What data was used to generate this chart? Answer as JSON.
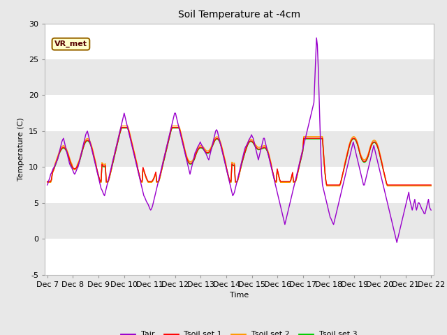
{
  "title": "Soil Temperature at -4cm",
  "xlabel": "Time",
  "ylabel": "Temperature (C)",
  "ylim": [
    -5,
    30
  ],
  "annotation": "VR_met",
  "line_colors": {
    "Tair": "#9900cc",
    "Tsoil_set1": "#ff0000",
    "Tsoil_set2": "#ff9900",
    "Tsoil_set3": "#00cc00"
  },
  "legend_labels": [
    "Tair",
    "Tsoil set 1",
    "Tsoil set 2",
    "Tsoil set 3"
  ],
  "xtick_labels": [
    "Dec 7",
    "Dec 8",
    "Dec 9",
    "Dec 10",
    "Dec 11",
    "Dec 12",
    "Dec 13",
    "Dec 14",
    "Dec 15",
    "Dec 16",
    "Dec 17",
    "Dec 18",
    "Dec 19",
    "Dec 20",
    "Dec 21",
    "Dec 22"
  ],
  "ytick_values": [
    -5,
    0,
    5,
    10,
    15,
    20,
    25,
    30
  ],
  "background_color": "#e8e8e8",
  "grid_color": "#ffffff",
  "line_width": 1.0,
  "tair": [
    7.5,
    7.8,
    8.2,
    8.5,
    9.0,
    9.2,
    9.5,
    9.8,
    10.0,
    10.2,
    10.5,
    10.8,
    11.0,
    11.5,
    12.0,
    12.5,
    13.0,
    13.5,
    13.8,
    14.0,
    13.5,
    13.0,
    12.5,
    12.0,
    11.5,
    11.0,
    10.5,
    10.2,
    10.0,
    9.8,
    9.5,
    9.2,
    9.0,
    9.2,
    9.5,
    9.8,
    10.0,
    10.5,
    11.0,
    11.5,
    12.0,
    12.5,
    13.0,
    13.5,
    14.0,
    14.5,
    14.8,
    15.0,
    14.5,
    14.0,
    13.5,
    13.0,
    12.5,
    12.0,
    11.5,
    11.0,
    10.5,
    10.0,
    9.5,
    9.0,
    8.5,
    8.0,
    7.5,
    7.0,
    6.8,
    6.5,
    6.2,
    6.0,
    6.5,
    7.0,
    7.5,
    8.0,
    8.5,
    9.0,
    9.5,
    10.0,
    10.5,
    11.0,
    11.5,
    12.0,
    12.5,
    13.0,
    13.5,
    14.0,
    14.5,
    15.0,
    15.5,
    16.0,
    16.5,
    17.0,
    17.5,
    17.0,
    16.5,
    16.0,
    15.5,
    15.0,
    14.5,
    14.0,
    13.5,
    13.0,
    12.5,
    12.0,
    11.5,
    11.0,
    10.5,
    10.0,
    9.5,
    9.0,
    8.5,
    8.0,
    7.5,
    7.0,
    6.5,
    6.0,
    5.8,
    5.5,
    5.2,
    5.0,
    4.8,
    4.5,
    4.2,
    4.0,
    4.2,
    4.5,
    5.0,
    5.5,
    6.0,
    6.5,
    7.0,
    7.5,
    8.0,
    8.5,
    9.0,
    9.5,
    10.0,
    10.5,
    11.0,
    11.5,
    12.0,
    12.5,
    13.0,
    13.5,
    14.0,
    14.5,
    15.0,
    15.5,
    16.0,
    16.5,
    17.0,
    17.5,
    17.5,
    17.0,
    16.5,
    16.0,
    15.5,
    15.0,
    14.5,
    14.0,
    13.5,
    13.0,
    12.5,
    12.0,
    11.5,
    11.0,
    10.5,
    10.0,
    9.5,
    9.0,
    9.5,
    10.0,
    10.5,
    11.0,
    11.5,
    12.0,
    12.2,
    12.5,
    12.8,
    13.0,
    13.2,
    13.5,
    13.2,
    13.0,
    12.8,
    12.5,
    12.2,
    12.0,
    11.8,
    11.5,
    11.2,
    11.0,
    11.5,
    12.0,
    12.5,
    13.0,
    13.5,
    14.0,
    14.5,
    15.0,
    15.2,
    15.0,
    14.5,
    14.0,
    13.5,
    13.0,
    12.5,
    12.0,
    11.5,
    11.0,
    10.5,
    10.0,
    9.5,
    9.0,
    8.5,
    8.0,
    7.5,
    7.0,
    6.5,
    6.0,
    6.2,
    6.5,
    7.0,
    7.5,
    8.0,
    8.5,
    9.0,
    9.5,
    10.0,
    10.5,
    11.0,
    11.5,
    12.0,
    12.5,
    12.8,
    13.0,
    13.2,
    13.5,
    13.8,
    14.0,
    14.2,
    14.5,
    14.2,
    14.0,
    13.5,
    13.0,
    12.5,
    12.0,
    11.5,
    11.0,
    11.5,
    12.0,
    12.5,
    13.0,
    13.5,
    14.0,
    14.0,
    13.5,
    13.0,
    12.5,
    12.0,
    11.5,
    11.0,
    10.5,
    10.0,
    9.5,
    9.0,
    8.5,
    8.0,
    7.5,
    7.0,
    6.5,
    6.0,
    5.5,
    5.0,
    4.5,
    4.0,
    3.5,
    3.0,
    2.5,
    2.0,
    2.5,
    3.0,
    3.5,
    4.0,
    4.5,
    5.0,
    5.5,
    6.0,
    6.5,
    7.0,
    7.5,
    8.0,
    8.5,
    9.0,
    9.5,
    10.0,
    10.5,
    11.0,
    11.5,
    12.0,
    12.5,
    13.0,
    13.5,
    14.0,
    14.5,
    15.0,
    15.5,
    16.0,
    16.5,
    17.0,
    17.5,
    18.0,
    18.5,
    19.0,
    22.0,
    25.0,
    28.0,
    27.0,
    24.0,
    20.0,
    16.0,
    12.0,
    9.0,
    7.5,
    7.0,
    6.5,
    6.0,
    5.5,
    5.0,
    4.5,
    4.0,
    3.5,
    3.0,
    2.8,
    2.5,
    2.2,
    2.0,
    2.5,
    3.0,
    3.5,
    4.0,
    4.5,
    5.0,
    5.5,
    6.0,
    6.5,
    7.0,
    7.5,
    8.0,
    8.5,
    9.0,
    9.5,
    10.0,
    10.5,
    11.0,
    11.5,
    12.0,
    12.5,
    13.0,
    13.5,
    13.0,
    12.5,
    12.0,
    11.5,
    11.0,
    10.5,
    10.0,
    9.5,
    9.0,
    8.5,
    8.0,
    7.5,
    7.5,
    8.0,
    8.5,
    9.0,
    9.5,
    10.0,
    10.5,
    11.0,
    11.5,
    12.0,
    12.5,
    13.0,
    12.5,
    12.0,
    11.5,
    11.0,
    10.5,
    10.0,
    9.5,
    9.0,
    8.5,
    8.0,
    7.5,
    7.0,
    6.5,
    6.0,
    5.5,
    5.0,
    4.5,
    4.0,
    3.5,
    3.0,
    2.5,
    2.0,
    1.5,
    1.0,
    0.5,
    0.0,
    -0.5,
    0.0,
    0.5,
    1.0,
    1.5,
    2.0,
    2.5,
    3.0,
    3.5,
    4.0,
    4.5,
    5.0,
    5.5,
    6.0,
    6.5,
    5.5,
    5.0,
    4.5,
    4.0,
    4.5,
    5.0,
    5.5,
    4.5,
    4.0,
    4.5,
    5.0,
    5.0,
    4.8,
    4.5,
    4.2,
    4.0,
    3.8,
    3.5,
    3.5,
    4.0,
    4.5,
    5.0,
    5.5,
    4.5,
    4.2,
    4.0
  ]
}
